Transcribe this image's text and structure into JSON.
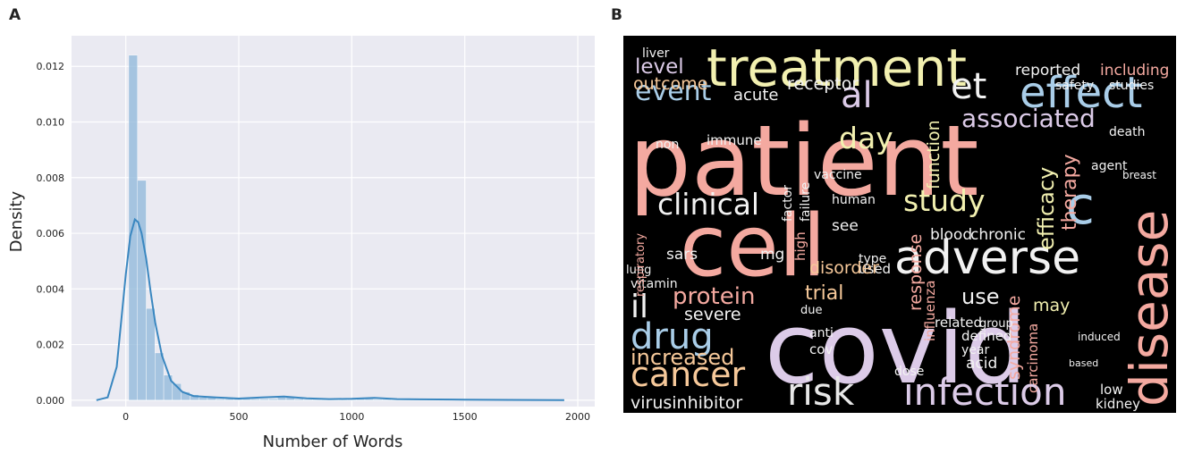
{
  "chart_data": [
    {
      "type": "histogram",
      "panel_label": "A",
      "xlabel": "Number of Words",
      "ylabel": "Density",
      "bins": [
        13,
        51.7,
        90.4,
        129.1,
        167.8,
        206.5,
        245.2,
        283.9,
        322.6,
        361.3,
        400,
        438.7,
        477.4,
        516.1,
        554.8,
        593.5,
        632.2,
        670.9,
        709.6,
        748.3,
        787,
        825.7,
        864.4,
        903.1,
        941.8,
        980.5,
        1019.2,
        1057.9,
        1096.6,
        1135.3,
        1174,
        1212.7,
        1251.4,
        1290.1,
        1328.8,
        1367.5,
        1406.2,
        1444.9,
        1483.6,
        1522.3,
        1561,
        1599.7,
        1638.4,
        1677.1,
        1715.8,
        1754.5,
        1793.2,
        1831.9,
        1870.6,
        1909.3,
        1948
      ],
      "values": [
        0.0124,
        0.0079,
        0.0033,
        0.0017,
        0.0009,
        0.0006,
        0.0003,
        0.0002,
        0.0001,
        0.0001,
        5e-05,
        5e-05,
        5e-05,
        5e-05,
        5e-05,
        5e-05,
        5e-05,
        0.0001,
        0.0001,
        5e-05,
        3e-05,
        3e-05,
        3e-05,
        3e-05,
        3e-05,
        3e-05,
        5e-05,
        5e-05,
        3e-05,
        3e-05,
        2e-05,
        2e-05,
        2e-05,
        2e-05,
        2e-05,
        2e-05,
        3e-05,
        3e-05,
        2e-05,
        2e-05,
        1e-05,
        1e-05,
        1e-05,
        1e-05,
        1e-05,
        1e-05,
        1e-05,
        1e-05,
        1e-05,
        1e-05
      ],
      "color": "#8db7d9",
      "kde": {
        "color": "#3a87c0",
        "x": [
          -130,
          -80,
          -40,
          0,
          20,
          40,
          55,
          70,
          90,
          110,
          130,
          160,
          200,
          250,
          300,
          400,
          500,
          600,
          700,
          800,
          900,
          1000,
          1100,
          1200,
          1300,
          1500,
          1700,
          1940
        ],
        "values": [
          0,
          0.0001,
          0.0012,
          0.0045,
          0.0059,
          0.0065,
          0.0064,
          0.006,
          0.0051,
          0.0039,
          0.0028,
          0.0016,
          0.0007,
          0.0003,
          0.00015,
          0.0001,
          6e-05,
          0.0001,
          0.00013,
          7e-05,
          4e-05,
          5e-05,
          8e-05,
          4e-05,
          3e-05,
          2e-05,
          1e-05,
          0
        ]
      },
      "xlim": [
        -240,
        2075
      ],
      "ylim": [
        -0.00023,
        0.0131
      ],
      "xticks": [
        0,
        500,
        1000,
        1500,
        2000
      ],
      "yticks": [
        {
          "value": 0,
          "label": "0.000"
        },
        {
          "value": 0.002,
          "label": "0.002"
        },
        {
          "value": 0.004,
          "label": "0.004"
        },
        {
          "value": 0.006,
          "label": "0.006"
        },
        {
          "value": 0.008,
          "label": "0.008"
        },
        {
          "value": 0.01,
          "label": "0.010"
        },
        {
          "value": 0.012,
          "label": "0.012"
        }
      ],
      "grid": true
    },
    {
      "type": "wordcloud",
      "panel_label": "B",
      "background": "#000000",
      "words": [
        {
          "text": "patient",
          "weight": 110,
          "color": "#f4a9a0"
        },
        {
          "text": "covid",
          "weight": 110,
          "color": "#dccbe8"
        },
        {
          "text": "cell",
          "weight": 95,
          "color": "#f4a9a0"
        },
        {
          "text": "treatment",
          "weight": 58,
          "color": "#f2f0b0"
        },
        {
          "text": "disease",
          "weight": 58,
          "color": "#f4a9a0"
        },
        {
          "text": "adverse",
          "weight": 52,
          "color": "#f2f2f2"
        },
        {
          "text": "effect",
          "weight": 48,
          "color": "#a9cde8"
        },
        {
          "text": "et",
          "weight": 40,
          "color": "#f2f2f2"
        },
        {
          "text": "al",
          "weight": 40,
          "color": "#dccbe8"
        },
        {
          "text": "event",
          "weight": 30,
          "color": "#a9cde8"
        },
        {
          "text": "associated",
          "weight": 28,
          "color": "#dccbe8"
        },
        {
          "text": "infection",
          "weight": 42,
          "color": "#dccbe8"
        },
        {
          "text": "risk",
          "weight": 42,
          "color": "#e8e8e8"
        },
        {
          "text": "cancer",
          "weight": 38,
          "color": "#f7c99a"
        },
        {
          "text": "drug",
          "weight": 40,
          "color": "#a9cde8"
        },
        {
          "text": "clinical",
          "weight": 33,
          "color": "#f2f2f2"
        },
        {
          "text": "study",
          "weight": 33,
          "color": "#f2f0b0"
        },
        {
          "text": "day",
          "weight": 33,
          "color": "#f2f0b0"
        },
        {
          "text": "c",
          "weight": 58,
          "color": "#a9cde8"
        },
        {
          "text": "protein",
          "weight": 26,
          "color": "#f4a9a0"
        },
        {
          "text": "il",
          "weight": 36,
          "color": "#f2f2f2"
        },
        {
          "text": "increased",
          "weight": 24,
          "color": "#f7c99a"
        },
        {
          "text": "virusinhibitor",
          "weight": 19,
          "color": "#f2f2f2"
        },
        {
          "text": "level",
          "weight": 23,
          "color": "#dccbe8"
        },
        {
          "text": "outcome",
          "weight": 19,
          "color": "#f7c99a"
        },
        {
          "text": "receptor",
          "weight": 19,
          "color": "#f2f2f2"
        },
        {
          "text": "acute",
          "weight": 18,
          "color": "#f2f2f2"
        },
        {
          "text": "reported",
          "weight": 17,
          "color": "#f2f2f2"
        },
        {
          "text": "including",
          "weight": 17,
          "color": "#f4a9a0"
        },
        {
          "text": "safety",
          "weight": 14,
          "color": "#f2f2f2"
        },
        {
          "text": "studies",
          "weight": 14,
          "color": "#f2f2f2"
        },
        {
          "text": "liver",
          "weight": 14,
          "color": "#f2f2f2"
        },
        {
          "text": "therapy",
          "weight": 22,
          "color": "#f4a9a0"
        },
        {
          "text": "efficacy",
          "weight": 24,
          "color": "#f2f0b0"
        },
        {
          "text": "function",
          "weight": 19,
          "color": "#f2f0b0"
        },
        {
          "text": "response",
          "weight": 19,
          "color": "#f4a9a0"
        },
        {
          "text": "severe",
          "weight": 19,
          "color": "#f2f2f2"
        },
        {
          "text": "trial",
          "weight": 22,
          "color": "#f7c99a"
        },
        {
          "text": "use",
          "weight": 24,
          "color": "#f2f2f2"
        },
        {
          "text": "may",
          "weight": 19,
          "color": "#f2f0b0"
        },
        {
          "text": "used",
          "weight": 15,
          "color": "#f2f2f2"
        },
        {
          "text": "disorder",
          "weight": 19,
          "color": "#f7c99a"
        },
        {
          "text": "sars",
          "weight": 17,
          "color": "#f2f2f2"
        },
        {
          "text": "mg",
          "weight": 17,
          "color": "#f2f2f2"
        },
        {
          "text": "see",
          "weight": 17,
          "color": "#f2f2f2"
        },
        {
          "text": "blood",
          "weight": 17,
          "color": "#f2f2f2"
        },
        {
          "text": "chronic",
          "weight": 17,
          "color": "#f2f2f2"
        },
        {
          "text": "human",
          "weight": 14,
          "color": "#f2f2f2"
        },
        {
          "text": "immune",
          "weight": 15,
          "color": "#f2f2f2"
        },
        {
          "text": "non",
          "weight": 14,
          "color": "#f2f2f2"
        },
        {
          "text": "vaccine",
          "weight": 14,
          "color": "#f2f2f2"
        },
        {
          "text": "factor",
          "weight": 14,
          "color": "#f2f2f2"
        },
        {
          "text": "failure",
          "weight": 14,
          "color": "#f2f2f2"
        },
        {
          "text": "high",
          "weight": 15,
          "color": "#f4a9a0"
        },
        {
          "text": "syndrome",
          "weight": 19,
          "color": "#f4a9a0"
        },
        {
          "text": "carcinoma",
          "weight": 15,
          "color": "#f4a9a0"
        },
        {
          "text": "acid",
          "weight": 17,
          "color": "#f2f2f2"
        },
        {
          "text": "year",
          "weight": 14,
          "color": "#f2f2f2"
        },
        {
          "text": "dose",
          "weight": 14,
          "color": "#f2f2f2"
        },
        {
          "text": "related",
          "weight": 15,
          "color": "#f2f2f2"
        },
        {
          "text": "defined",
          "weight": 15,
          "color": "#f2f2f2"
        },
        {
          "text": "low",
          "weight": 15,
          "color": "#f2f2f2"
        },
        {
          "text": "kidney",
          "weight": 15,
          "color": "#f2f2f2"
        },
        {
          "text": "vitamin",
          "weight": 14,
          "color": "#f2f2f2"
        },
        {
          "text": "lung",
          "weight": 13,
          "color": "#f2f2f2"
        },
        {
          "text": "type",
          "weight": 14,
          "color": "#f2f2f2"
        },
        {
          "text": "cov",
          "weight": 15,
          "color": "#f2f2f2"
        },
        {
          "text": "anti",
          "weight": 14,
          "color": "#f2f2f2"
        },
        {
          "text": "due",
          "weight": 13,
          "color": "#f2f2f2"
        },
        {
          "text": "agent",
          "weight": 14,
          "color": "#f2f2f2"
        },
        {
          "text": "death",
          "weight": 14,
          "color": "#f2f2f2"
        },
        {
          "text": "breast",
          "weight": 12,
          "color": "#f2f2f2"
        },
        {
          "text": "group",
          "weight": 13,
          "color": "#f2f2f2"
        },
        {
          "text": "induced",
          "weight": 12,
          "color": "#f2f2f2"
        },
        {
          "text": "respiratory",
          "weight": 13,
          "color": "#f4a9a0"
        },
        {
          "text": "influenza",
          "weight": 15,
          "color": "#f4a9a0"
        },
        {
          "text": "based",
          "weight": 11,
          "color": "#f2f2f2"
        }
      ]
    }
  ]
}
